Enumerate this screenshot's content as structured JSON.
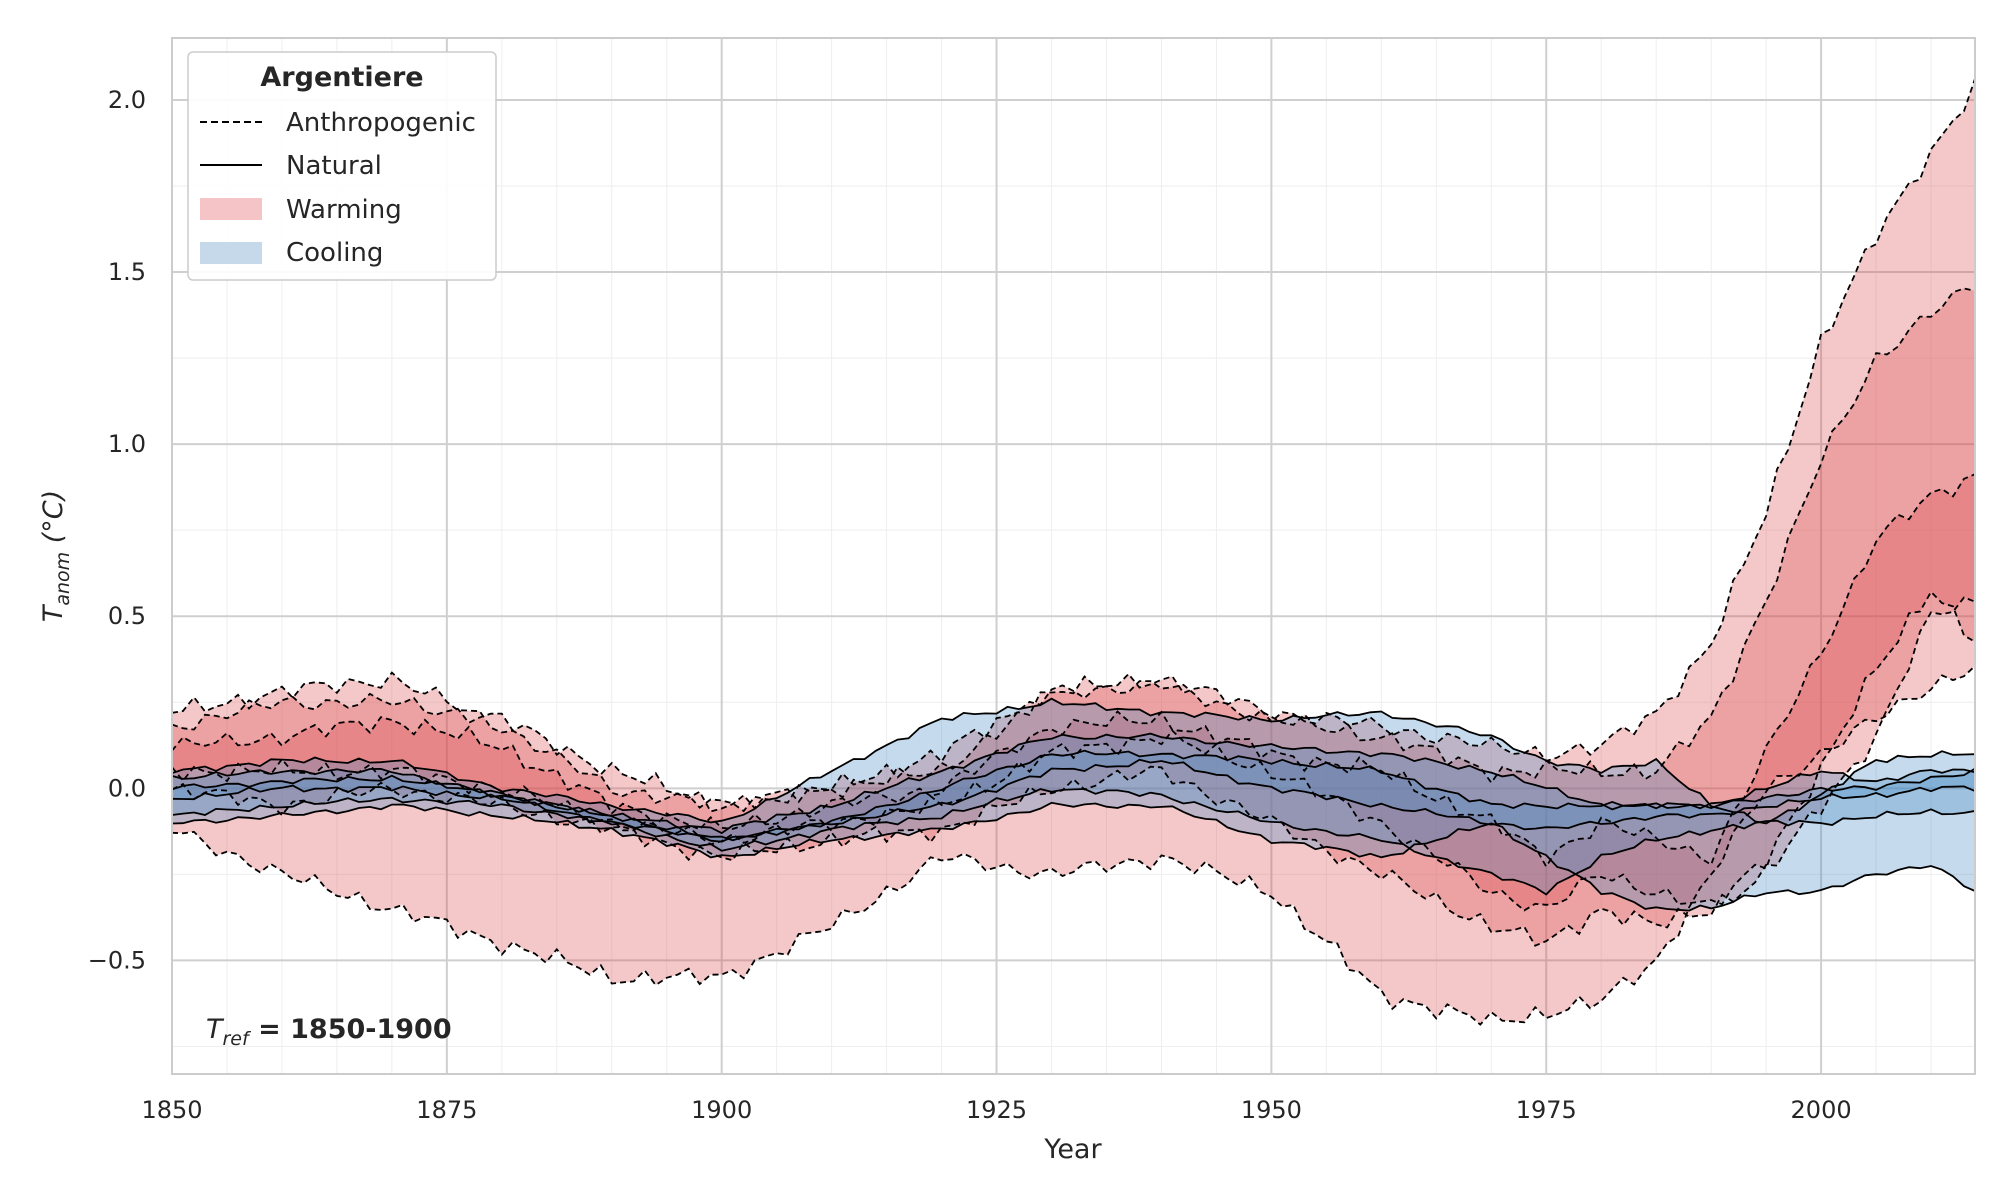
{
  "chart_data": {
    "type": "area",
    "xlabel": "Year",
    "ylabel": "T_anom (°C)",
    "ylabel_symbol": "T",
    "ylabel_subscript": "anom",
    "ylabel_unit": " (°C)",
    "xlim": [
      1850,
      2014
    ],
    "ylim": [
      -0.83,
      2.18
    ],
    "xticks": [
      1850,
      1875,
      1900,
      1925,
      1950,
      1975,
      2000
    ],
    "xtick_labels": [
      "1850",
      "1875",
      "1900",
      "1925",
      "1950",
      "1975",
      "2000"
    ],
    "yticks": [
      -0.5,
      0.0,
      0.5,
      1.0,
      1.5,
      2.0
    ],
    "ytick_labels": [
      "−0.5",
      "0.0",
      "0.5",
      "1.0",
      "1.5",
      "2.0"
    ],
    "grid": true,
    "legend": {
      "title": "Argentiere",
      "placement": "top-left",
      "entries": [
        {
          "label": "Anthropogenic",
          "style": "dashed-line"
        },
        {
          "label": "Natural",
          "style": "solid-line"
        },
        {
          "label": "Warming",
          "style": "patch",
          "color": "#f4c4c6"
        },
        {
          "label": "Cooling",
          "style": "patch",
          "color": "#c5d9ea"
        }
      ]
    },
    "annotation": {
      "symbol": "T",
      "subscript": "ref",
      "text": " = 1850-1900",
      "placement": "bottom-left"
    },
    "colors": {
      "warming": "#d94a4d",
      "cooling": "#4a8cc4",
      "line": "#000000"
    },
    "anthropogenic_series": [
      {
        "x": [
          1850,
          1860,
          1870,
          1880,
          1890,
          1900,
          1910,
          1920,
          1930,
          1940,
          1950,
          1960,
          1970,
          1975,
          1980,
          1985,
          1990,
          1995,
          2000,
          2005,
          2010,
          2014
        ],
        "y": [
          0.22,
          0.28,
          0.32,
          0.18,
          0.0,
          -0.05,
          0.0,
          0.1,
          0.28,
          0.32,
          0.22,
          0.18,
          0.12,
          0.1,
          0.12,
          0.22,
          0.42,
          0.8,
          1.3,
          1.6,
          1.85,
          2.04
        ]
      },
      {
        "x": [
          1850,
          1860,
          1870,
          1880,
          1890,
          1900,
          1910,
          1920,
          1930,
          1940,
          1950,
          1960,
          1970,
          1975,
          1980,
          1985,
          1990,
          1995,
          2000,
          2005,
          2010,
          2014
        ],
        "y": [
          0.18,
          0.25,
          0.25,
          0.2,
          0.05,
          -0.05,
          0.0,
          0.05,
          0.28,
          0.3,
          0.2,
          0.15,
          0.05,
          0.05,
          0.05,
          0.05,
          0.2,
          0.55,
          0.95,
          1.25,
          1.38,
          1.46
        ]
      },
      {
        "x": [
          1850,
          1860,
          1870,
          1880,
          1890,
          1900,
          1910,
          1920,
          1930,
          1940,
          1950,
          1960,
          1970,
          1975,
          1980,
          1985,
          1990,
          1995,
          2000,
          2005,
          2010,
          2014
        ],
        "y": [
          0.12,
          0.15,
          0.2,
          0.12,
          -0.05,
          -0.12,
          -0.05,
          0.0,
          0.18,
          0.2,
          0.1,
          0.05,
          -0.1,
          -0.2,
          -0.1,
          -0.15,
          -0.2,
          0.1,
          0.4,
          0.72,
          0.85,
          0.91
        ]
      },
      {
        "x": [
          1850,
          1860,
          1870,
          1880,
          1890,
          1900,
          1910,
          1920,
          1930,
          1940,
          1950,
          1960,
          1970,
          1975,
          1980,
          1985,
          1990,
          1995,
          2000,
          2005,
          2010,
          2014
        ],
        "y": [
          0.05,
          0.05,
          0.05,
          0.0,
          -0.1,
          -0.15,
          -0.1,
          -0.05,
          0.1,
          0.15,
          0.05,
          -0.1,
          -0.3,
          -0.35,
          -0.25,
          -0.3,
          -0.35,
          -0.2,
          0.05,
          0.35,
          0.58,
          0.42
        ]
      },
      {
        "x": [
          1850,
          1860,
          1870,
          1880,
          1890,
          1900,
          1910,
          1920,
          1930,
          1940,
          1950,
          1960,
          1970,
          1975,
          1980,
          1985,
          1990,
          1995,
          2000,
          2005,
          2010,
          2014
        ],
        "y": [
          0.0,
          -0.05,
          0.0,
          -0.05,
          -0.12,
          -0.2,
          -0.15,
          -0.12,
          0.0,
          0.05,
          -0.1,
          -0.25,
          -0.4,
          -0.45,
          -0.35,
          -0.4,
          -0.35,
          -0.25,
          -0.05,
          0.15,
          0.5,
          0.55
        ]
      },
      {
        "x": [
          1850,
          1860,
          1870,
          1880,
          1890,
          1900,
          1910,
          1920,
          1930,
          1940,
          1950,
          1960,
          1970,
          1975,
          1980,
          1985,
          1990,
          1995,
          2000,
          2005,
          2010,
          2014
        ],
        "y": [
          -0.12,
          -0.25,
          -0.35,
          -0.45,
          -0.55,
          -0.55,
          -0.4,
          -0.2,
          -0.25,
          -0.2,
          -0.3,
          -0.6,
          -0.68,
          -0.65,
          -0.62,
          -0.5,
          -0.25,
          0.0,
          0.1,
          0.2,
          0.3,
          0.35
        ]
      }
    ],
    "natural_series": [
      {
        "x": [
          1850,
          1860,
          1870,
          1880,
          1890,
          1900,
          1910,
          1920,
          1930,
          1940,
          1950,
          1960,
          1970,
          1975,
          1980,
          1985,
          1990,
          1995,
          2000,
          2005,
          2010,
          2014
        ],
        "y": [
          0.05,
          0.08,
          0.08,
          0.0,
          -0.05,
          -0.1,
          0.05,
          0.2,
          0.25,
          0.22,
          0.2,
          0.22,
          0.15,
          0.08,
          0.05,
          0.08,
          -0.05,
          -0.1,
          -0.02,
          0.08,
          0.1,
          0.1
        ]
      },
      {
        "x": [
          1850,
          1860,
          1870,
          1880,
          1890,
          1900,
          1910,
          1920,
          1930,
          1940,
          1950,
          1960,
          1970,
          1975,
          1980,
          1985,
          1990,
          1995,
          2000,
          2005,
          2010,
          2014
        ],
        "y": [
          0.03,
          0.05,
          0.05,
          -0.02,
          -0.08,
          -0.12,
          -0.05,
          0.05,
          0.15,
          0.15,
          0.12,
          0.1,
          0.05,
          0.0,
          -0.05,
          -0.05,
          -0.05,
          0.0,
          0.05,
          0.02,
          0.05,
          0.05
        ]
      },
      {
        "x": [
          1850,
          1860,
          1870,
          1880,
          1890,
          1900,
          1910,
          1920,
          1930,
          1940,
          1950,
          1960,
          1970,
          1975,
          1980,
          1985,
          1990,
          1995,
          2000,
          2005,
          2010,
          2014
        ],
        "y": [
          0.0,
          0.02,
          0.03,
          -0.02,
          -0.08,
          -0.15,
          -0.1,
          0.0,
          0.1,
          0.1,
          0.08,
          0.05,
          -0.05,
          -0.05,
          -0.05,
          -0.05,
          -0.05,
          -0.03,
          0.0,
          0.0,
          0.03,
          0.05
        ]
      },
      {
        "x": [
          1850,
          1860,
          1870,
          1880,
          1890,
          1900,
          1910,
          1920,
          1930,
          1940,
          1950,
          1960,
          1970,
          1975,
          1980,
          1985,
          1990,
          1995,
          2000,
          2005,
          2010,
          2014
        ],
        "y": [
          -0.03,
          0.0,
          0.0,
          -0.03,
          -0.1,
          -0.15,
          -0.1,
          -0.05,
          0.05,
          0.08,
          0.0,
          -0.05,
          -0.1,
          -0.12,
          -0.1,
          -0.08,
          -0.08,
          -0.05,
          -0.03,
          -0.02,
          0.0,
          0.0
        ]
      },
      {
        "x": [
          1850,
          1860,
          1870,
          1880,
          1890,
          1900,
          1910,
          1920,
          1930,
          1940,
          1950,
          1960,
          1970,
          1975,
          1980,
          1985,
          1990,
          1995,
          2000,
          2005,
          2010,
          2014
        ],
        "y": [
          -0.08,
          -0.05,
          -0.03,
          -0.05,
          -0.1,
          -0.18,
          -0.12,
          -0.08,
          0.0,
          -0.02,
          -0.1,
          -0.15,
          -0.25,
          -0.3,
          -0.2,
          -0.15,
          -0.12,
          -0.1,
          -0.1,
          -0.08,
          -0.07,
          -0.07
        ]
      },
      {
        "x": [
          1850,
          1860,
          1870,
          1880,
          1890,
          1900,
          1910,
          1920,
          1930,
          1940,
          1950,
          1960,
          1970,
          1975,
          1980,
          1985,
          1990,
          1995,
          2000,
          2005,
          2010,
          2014
        ],
        "y": [
          -0.1,
          -0.08,
          -0.05,
          -0.08,
          -0.12,
          -0.2,
          -0.15,
          -0.12,
          -0.05,
          -0.05,
          -0.15,
          -0.2,
          -0.1,
          -0.2,
          -0.3,
          -0.35,
          -0.35,
          -0.3,
          -0.3,
          -0.25,
          -0.22,
          -0.3
        ]
      }
    ]
  }
}
